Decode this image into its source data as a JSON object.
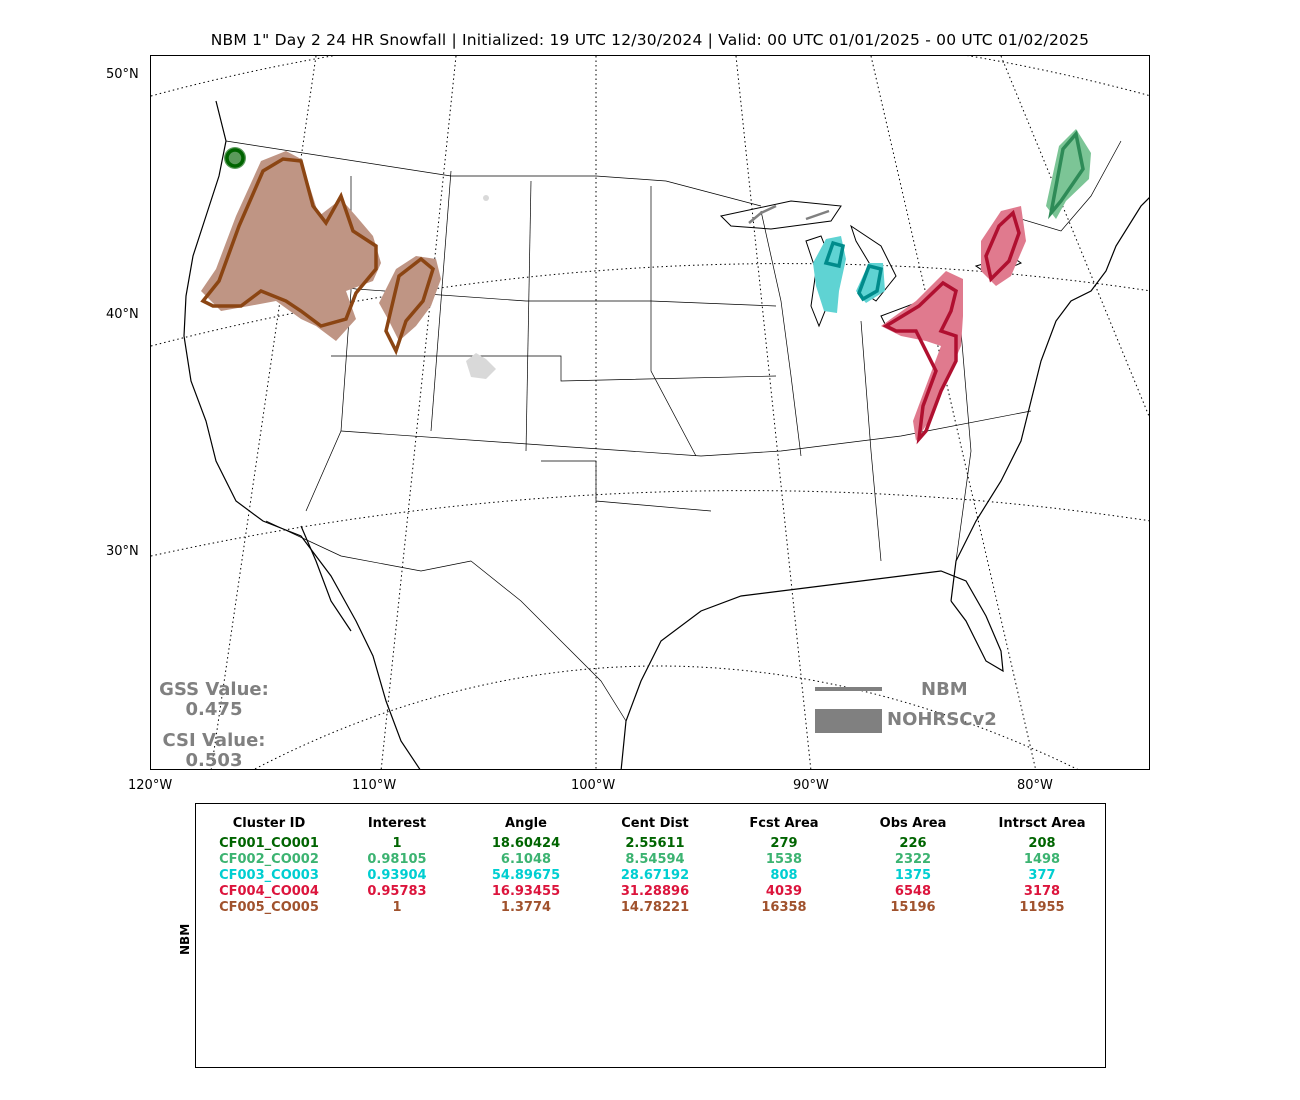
{
  "title": "NBM 1\" Day 2 24 HR Snowfall | Initialized: 19 UTC 12/30/2024 | Valid: 00 UTC 01/01/2025 - 00 UTC 01/02/2025",
  "lat_labels": [
    "50°N",
    "40°N",
    "30°N"
  ],
  "lon_labels": [
    "120°W",
    "110°W",
    "100°W",
    "90°W",
    "80°W"
  ],
  "gss": {
    "label": "GSS Value:",
    "value": "0.475"
  },
  "csi": {
    "label": "CSI Value:",
    "value": "0.503"
  },
  "legend": {
    "line_label": "NBM",
    "fill_label": "NOHRSCv2",
    "color": "#808080"
  },
  "side_label": "NBM",
  "table": {
    "headers": [
      "Cluster ID",
      "Interest",
      "Angle",
      "Cent Dist",
      "Fcst Area",
      "Obs Area",
      "Intrsct Area"
    ],
    "rows": [
      {
        "color": "#006400",
        "cells": [
          "CF001_CO001",
          "1",
          "18.60424",
          "2.55611",
          "279",
          "226",
          "208"
        ]
      },
      {
        "color": "#3cb371",
        "cells": [
          "CF002_CO002",
          "0.98105",
          "6.1048",
          "8.54594",
          "1538",
          "2322",
          "1498"
        ]
      },
      {
        "color": "#00ced1",
        "cells": [
          "CF003_CO003",
          "0.93904",
          "54.89675",
          "28.67192",
          "808",
          "1375",
          "377"
        ]
      },
      {
        "color": "#dc143c",
        "cells": [
          "CF004_CO004",
          "0.95783",
          "16.93455",
          "31.28896",
          "4039",
          "6548",
          "3178"
        ]
      },
      {
        "color": "#a0522d",
        "cells": [
          "CF005_CO005",
          "1",
          "1.3774",
          "14.78221",
          "16358",
          "15196",
          "11955"
        ]
      }
    ]
  },
  "clusters": [
    {
      "name": "CF001_CO001",
      "fill": "#5b9a5b",
      "line": "#006400"
    },
    {
      "name": "CF002_CO002",
      "fill": "#7cc596",
      "line": "#2e8b57"
    },
    {
      "name": "CF003_CO003",
      "fill": "#5fd3d3",
      "line": "#008b8b"
    },
    {
      "name": "CF004_CO004",
      "fill": "#e07a8e",
      "line": "#b01030"
    },
    {
      "name": "CF005_CO005",
      "fill": "#bf9584",
      "line": "#8b4513"
    }
  ]
}
